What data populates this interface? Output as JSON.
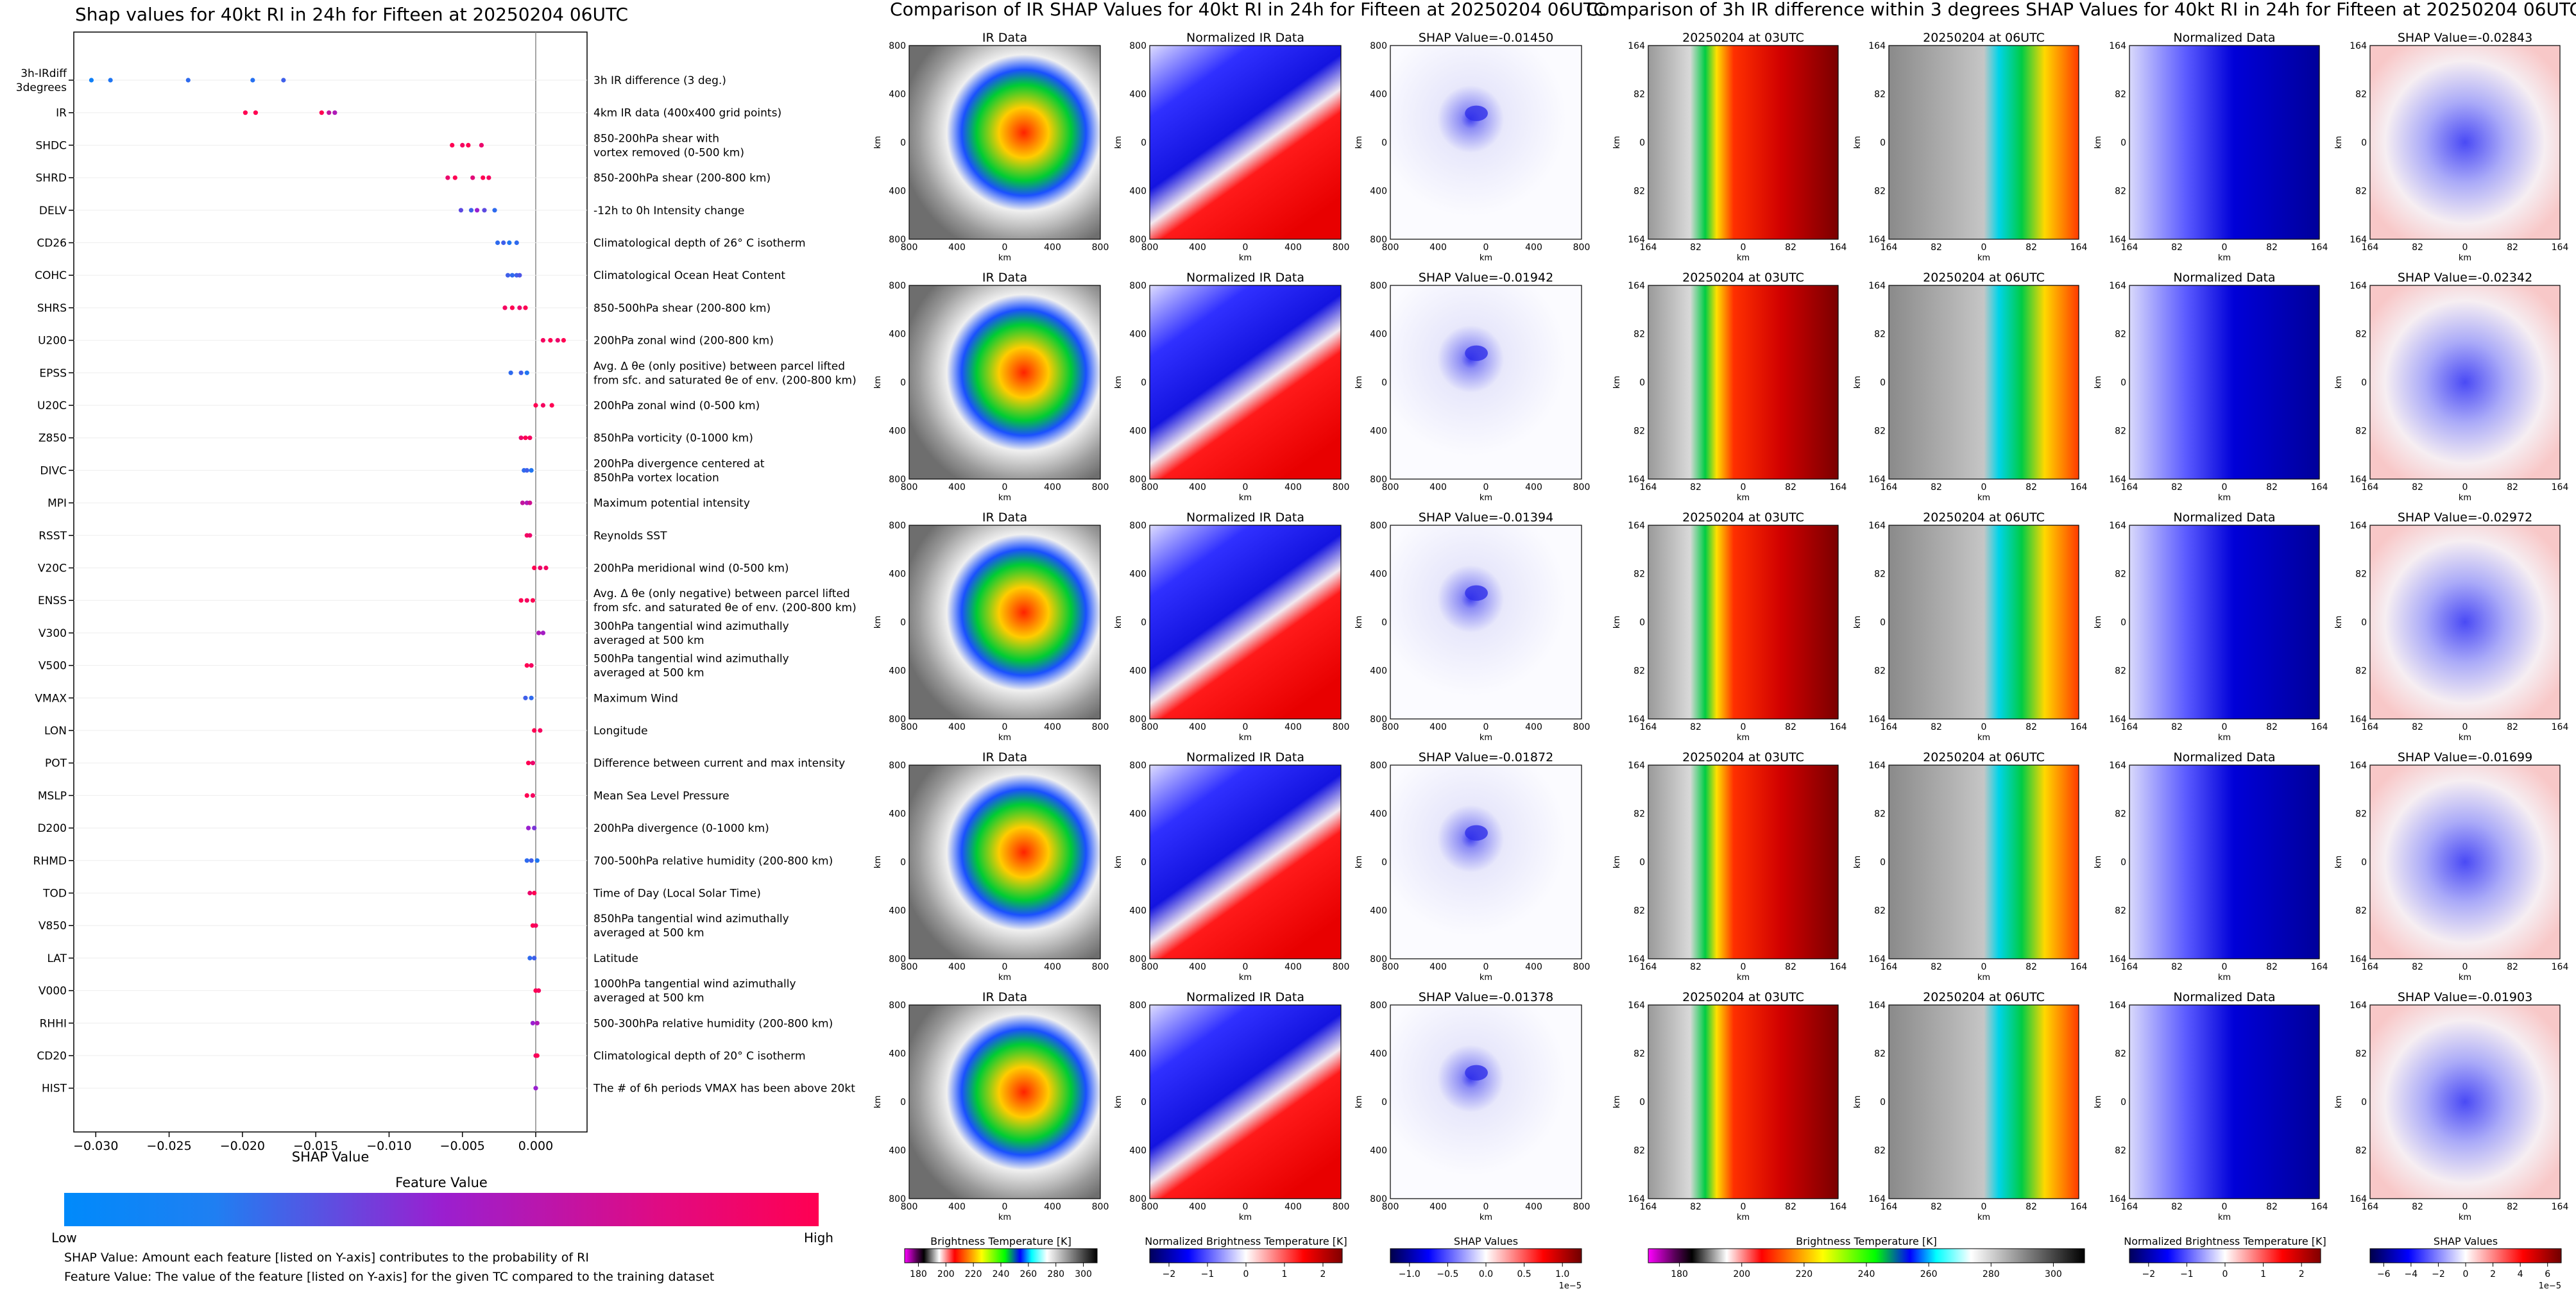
{
  "colors": {
    "feature_low": "#008afb",
    "feature_mid": "#9a1fd0",
    "feature_high": "#ff0052"
  },
  "chart_data": [
    {
      "type": "scatter",
      "title": "Shap values for 40kt RI in 24h for Fifteen at 20250204 06UTC",
      "xlabel": "SHAP Value",
      "xlim": [
        -0.0315,
        0.0035
      ],
      "xticks": [
        -0.03,
        -0.025,
        -0.02,
        -0.015,
        -0.01,
        -0.005,
        0.0
      ],
      "xtick_labels": [
        "−0.030",
        "−0.025",
        "−0.020",
        "−0.015",
        "−0.010",
        "−0.005",
        "0.000"
      ],
      "features": [
        {
          "name": "3h-IRdiff\n3degrees",
          "desc": "3h IR difference (3 deg.)",
          "shap": [
            -0.0303,
            -0.029,
            -0.0237,
            -0.0193,
            -0.0172
          ],
          "fv": [
            0.05,
            0.1,
            0.15,
            0.12,
            0.2
          ]
        },
        {
          "name": "IR",
          "desc": "4km IR data (400x400 grid points)",
          "shap": [
            -0.0198,
            -0.0191,
            -0.0146,
            -0.0141,
            -0.0137
          ],
          "fv": [
            1,
            1,
            1,
            0.7,
            0.6
          ]
        },
        {
          "name": "SHDC",
          "desc": "850-200hPa shear with\nvortex removed (0-500 km)",
          "shap": [
            -0.0057,
            -0.005,
            -0.0046,
            -0.0037
          ],
          "fv": [
            1,
            0.95,
            1,
            0.9
          ]
        },
        {
          "name": "SHRD",
          "desc": "850-200hPa shear (200-800 km)",
          "shap": [
            -0.006,
            -0.0055,
            -0.0043,
            -0.0036,
            -0.0032
          ],
          "fv": [
            0.9,
            1,
            0.85,
            1,
            0.95
          ]
        },
        {
          "name": "DELV",
          "desc": "-12h to 0h Intensity change",
          "shap": [
            -0.0051,
            -0.0044,
            -0.004,
            -0.0035,
            -0.0028
          ],
          "fv": [
            0.3,
            0.2,
            0.5,
            0.3,
            0.15
          ]
        },
        {
          "name": "CD26",
          "desc": "Climatological depth of 26° C isotherm",
          "shap": [
            -0.0026,
            -0.0022,
            -0.0018,
            -0.0013
          ],
          "fv": [
            0.15,
            0.2,
            0.1,
            0.15
          ]
        },
        {
          "name": "COHC",
          "desc": "Climatological Ocean Heat Content",
          "shap": [
            -0.0019,
            -0.0016,
            -0.0013,
            -0.0011
          ],
          "fv": [
            0.2,
            0.15,
            0.2,
            0.25
          ]
        },
        {
          "name": "SHRS",
          "desc": "850-500hPa shear (200-800 km)",
          "shap": [
            -0.0021,
            -0.0016,
            -0.0011,
            -0.0007
          ],
          "fv": [
            0.95,
            1,
            0.9,
            1
          ]
        },
        {
          "name": "U200",
          "desc": "200hPa zonal wind (200-800 km)",
          "shap": [
            0.0005,
            0.001,
            0.0015,
            0.0019
          ],
          "fv": [
            0.95,
            1,
            0.9,
            1
          ]
        },
        {
          "name": "EPSS",
          "desc": "Avg. Δ θe (only positive) between parcel lifted\nfrom sfc. and saturated θe of env. (200-800 km)",
          "shap": [
            -0.0017,
            -0.001,
            -0.0006
          ],
          "fv": [
            0.15,
            0.2,
            0.1
          ]
        },
        {
          "name": "U20C",
          "desc": "200hPa zonal wind (0-500 km)",
          "shap": [
            0.0,
            0.0005,
            0.0011
          ],
          "fv": [
            1,
            0.95,
            1
          ]
        },
        {
          "name": "Z850",
          "desc": "850hPa vorticity (0-1000 km)",
          "shap": [
            -0.001,
            -0.0007,
            -0.0004
          ],
          "fv": [
            0.9,
            1,
            0.95
          ]
        },
        {
          "name": "DIVC",
          "desc": "200hPa divergence centered at\n850hPa vortex location",
          "shap": [
            -0.0008,
            -0.0006,
            -0.0003
          ],
          "fv": [
            0.15,
            0.2,
            0.1
          ]
        },
        {
          "name": "MPI",
          "desc": "Maximum potential intensity",
          "shap": [
            -0.0009,
            -0.0006,
            -0.0004
          ],
          "fv": [
            0.7,
            0.6,
            0.75
          ]
        },
        {
          "name": "RSST",
          "desc": "Reynolds SST",
          "shap": [
            -0.0006,
            -0.0004
          ],
          "fv": [
            0.95,
            0.9
          ]
        },
        {
          "name": "V20C",
          "desc": "200hPa meridional wind (0-500 km)",
          "shap": [
            -0.0001,
            0.0003,
            0.0007
          ],
          "fv": [
            1,
            0.9,
            0.95
          ]
        },
        {
          "name": "ENSS",
          "desc": "Avg. Δ θe (only negative) between parcel lifted\nfrom sfc. and saturated θe of env. (200-800 km)",
          "shap": [
            -0.001,
            -0.0006,
            -0.0002
          ],
          "fv": [
            1,
            0.95,
            1
          ]
        },
        {
          "name": "V300",
          "desc": "300hPa tangential wind azimuthally\naveraged at 500 km",
          "shap": [
            0.0002,
            0.0005
          ],
          "fv": [
            0.6,
            0.55
          ]
        },
        {
          "name": "V500",
          "desc": "500hPa tangential wind azimuthally\naveraged at 500 km",
          "shap": [
            -0.0006,
            -0.0003
          ],
          "fv": [
            1,
            0.95
          ]
        },
        {
          "name": "VMAX",
          "desc": "Maximum Wind",
          "shap": [
            -0.0007,
            -0.0003
          ],
          "fv": [
            0.2,
            0.15
          ]
        },
        {
          "name": "LON",
          "desc": "Longitude",
          "shap": [
            -0.0001,
            0.0003
          ],
          "fv": [
            1,
            0.95
          ]
        },
        {
          "name": "POT",
          "desc": "Difference between current and max intensity",
          "shap": [
            -0.0005,
            -0.0002
          ],
          "fv": [
            1,
            0.9
          ]
        },
        {
          "name": "MSLP",
          "desc": "Mean Sea Level Pressure",
          "shap": [
            -0.0006,
            -0.0002
          ],
          "fv": [
            1,
            0.95
          ]
        },
        {
          "name": "D200",
          "desc": "200hPa divergence (0-1000 km)",
          "shap": [
            -0.0005,
            -0.0001
          ],
          "fv": [
            0.5,
            0.4
          ]
        },
        {
          "name": "RHMD",
          "desc": "700-500hPa relative humidity (200-800 km)",
          "shap": [
            -0.0006,
            -0.0003,
            0.0001
          ],
          "fv": [
            0.15,
            0.2,
            0.1
          ]
        },
        {
          "name": "TOD",
          "desc": "Time of Day (Local Solar Time)",
          "shap": [
            -0.0004,
            -0.0001
          ],
          "fv": [
            0.9,
            1
          ]
        },
        {
          "name": "V850",
          "desc": "850hPa tangential wind azimuthally\naveraged at 500 km",
          "shap": [
            -0.0002,
            0.0
          ],
          "fv": [
            1,
            0.95
          ]
        },
        {
          "name": "LAT",
          "desc": "Latitude",
          "shap": [
            -0.0004,
            -0.0001
          ],
          "fv": [
            0.15,
            0.2
          ]
        },
        {
          "name": "V000",
          "desc": "1000hPa tangential wind azimuthally\naveraged at 500 km",
          "shap": [
            0.0,
            0.0002
          ],
          "fv": [
            1,
            0.95
          ]
        },
        {
          "name": "RHHI",
          "desc": "500-300hPa relative humidity (200-800 km)",
          "shap": [
            -0.0002,
            0.0001
          ],
          "fv": [
            0.5,
            0.6
          ]
        },
        {
          "name": "CD20",
          "desc": "Climatological depth of 20° C isotherm",
          "shap": [
            0.0,
            0.0001
          ],
          "fv": [
            0.9,
            1
          ]
        },
        {
          "name": "HIST",
          "desc": "The # of 6h periods VMAX has been above 20kt",
          "shap": [
            0.0
          ],
          "fv": [
            0.5
          ]
        }
      ],
      "colorbar": {
        "title": "Feature Value",
        "low": "Low",
        "high": "High"
      },
      "notes": [
        "SHAP Value: Amount each feature [listed on Y-axis] contributes to the probability of RI",
        "Feature Value: The value of the feature [listed on Y-axis] for the given TC compared to the training dataset"
      ]
    },
    {
      "type": "heatmap",
      "title": "Comparison of IR SHAP Values for 40kt RI in 24h for Fifteen at 20250204 06UTC",
      "columns": [
        "IR Data",
        "Normalized IR Data"
      ],
      "shap_titles": [
        "SHAP Value=-0.01450",
        "SHAP Value=-0.01942",
        "SHAP Value=-0.01394",
        "SHAP Value=-0.01872",
        "SHAP Value=-0.01378"
      ],
      "xticks": [
        "800",
        "400",
        "0",
        "400",
        "800"
      ],
      "yticks": [
        "800",
        "400",
        "0",
        "400",
        "800"
      ],
      "axis_label": "km",
      "colorbars": [
        {
          "label": "Brightness Temperature [K]",
          "ticks": [
            "180",
            "200",
            "220",
            "240",
            "260",
            "280",
            "300"
          ]
        },
        {
          "label": "Normalized Brightness Temperature [K]",
          "ticks": [
            "−2",
            "−1",
            "0",
            "1",
            "2"
          ]
        },
        {
          "label": "SHAP Values",
          "ticks": [
            "−1.0",
            "−0.5",
            "0.0",
            "0.5",
            "1.0"
          ],
          "scale": "1e−5"
        }
      ]
    },
    {
      "type": "heatmap",
      "title": "Comparison of 3h IR difference within 3 degrees SHAP Values for 40kt RI in 24h for Fifteen at 20250204 06UTC",
      "columns": [
        "20250204 at 03UTC",
        "20250204 at 06UTC",
        "Normalized Data"
      ],
      "shap_titles": [
        "SHAP Value=-0.02843",
        "SHAP Value=-0.02342",
        "SHAP Value=-0.02972",
        "SHAP Value=-0.01699",
        "SHAP Value=-0.01903"
      ],
      "xticks": [
        "164",
        "82",
        "0",
        "82",
        "164"
      ],
      "yticks": [
        "164",
        "82",
        "0",
        "82",
        "164"
      ],
      "axis_label": "km",
      "colorbars": [
        {
          "label": "Brightness Temperature [K]",
          "ticks": [
            "180",
            "200",
            "220",
            "240",
            "260",
            "280",
            "300"
          ]
        },
        {
          "label": "Normalized Brightness Temperature [K]",
          "ticks": [
            "−2",
            "−1",
            "0",
            "1",
            "2"
          ]
        },
        {
          "label": "SHAP Values",
          "ticks": [
            "−6",
            "−4",
            "−2",
            "0",
            "2",
            "4",
            "6"
          ],
          "scale": "1e−5"
        }
      ]
    }
  ]
}
